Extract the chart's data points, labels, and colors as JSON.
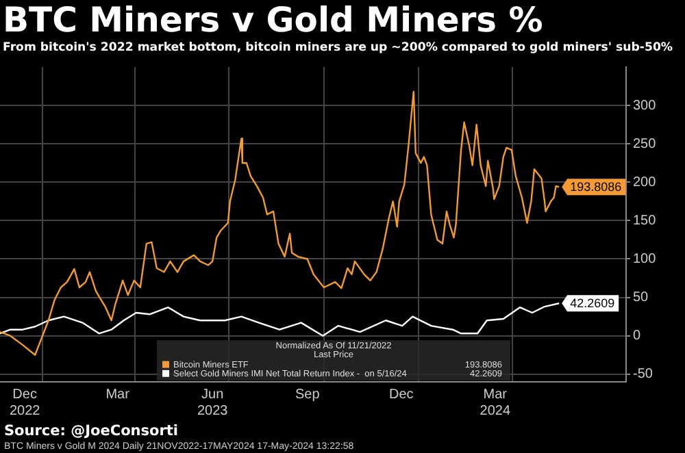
{
  "chart_data": {
    "type": "line",
    "title": "BTC Miners v Gold Miners %",
    "subtitle": "From bitcoin's 2022 market bottom, bitcoin miners are up ~200% compared to gold miners' sub-50%",
    "legend_title": "Normalized As Of 11/21/2022\nLast Price",
    "legend": "bottom",
    "grid": true,
    "marker": "none",
    "line_style": "solid",
    "xlim": [
      "2022-11-21",
      "2024-07-20"
    ],
    "xticks": [
      {
        "value": "2022-12-15",
        "label": "Dec\n2022"
      },
      {
        "value": "2023-01-01",
        "label": null
      },
      {
        "value": "2023-03-15",
        "label": "Mar"
      },
      {
        "value": "2023-04-01",
        "label": null
      },
      {
        "value": "2023-06-15",
        "label": "Jun\n2023"
      },
      {
        "value": "2023-07-01",
        "label": null
      },
      {
        "value": "2023-09-15",
        "label": "Sep"
      },
      {
        "value": "2023-10-01",
        "label": null
      },
      {
        "value": "2023-12-15",
        "label": "Dec"
      },
      {
        "value": "2024-01-01",
        "label": null
      },
      {
        "value": "2024-03-15",
        "label": "Mar\n2024"
      },
      {
        "value": "2024-04-01",
        "label": null
      }
    ],
    "ylim": [
      -60,
      350
    ],
    "yticks": [
      -50,
      0,
      50,
      100,
      150,
      200,
      250,
      300
    ],
    "series": [
      {
        "name": "Bitcoin Miners ETF",
        "color": "#f39a32",
        "x": [
          "2022-11-21",
          "2022-12-01",
          "2022-12-13",
          "2022-12-25",
          "2023-01-07",
          "2023-01-13",
          "2023-01-19",
          "2023-01-25",
          "2023-02-01",
          "2023-02-06",
          "2023-02-12",
          "2023-02-16",
          "2023-02-22",
          "2023-03-03",
          "2023-03-09",
          "2023-03-13",
          "2023-03-20",
          "2023-03-25",
          "2023-03-31",
          "2023-04-06",
          "2023-04-12",
          "2023-04-17",
          "2023-04-22",
          "2023-04-29",
          "2023-05-05",
          "2023-05-12",
          "2023-05-18",
          "2023-05-28",
          "2023-06-03",
          "2023-06-11",
          "2023-06-15",
          "2023-06-19",
          "2023-06-23",
          "2023-06-30",
          "2023-07-02",
          "2023-07-07",
          "2023-07-13",
          "2023-07-14",
          "2023-07-18",
          "2023-07-22",
          "2023-07-28",
          "2023-08-03",
          "2023-08-07",
          "2023-08-13",
          "2023-08-18",
          "2023-08-24",
          "2023-08-29",
          "2023-08-31",
          "2023-09-06",
          "2023-09-15",
          "2023-09-21",
          "2023-10-01",
          "2023-10-12",
          "2023-10-18",
          "2023-10-24",
          "2023-10-28",
          "2023-10-31",
          "2023-11-09",
          "2023-11-15",
          "2023-11-21",
          "2023-11-27",
          "2023-12-03",
          "2023-12-07",
          "2023-12-11",
          "2023-12-13",
          "2023-12-18",
          "2023-12-22",
          "2023-12-27",
          "2023-12-29",
          "2024-01-03",
          "2024-01-06",
          "2024-01-09",
          "2024-01-13",
          "2024-01-19",
          "2024-01-24",
          "2024-01-28",
          "2024-01-31",
          "2024-02-04",
          "2024-02-06",
          "2024-02-11",
          "2024-02-14",
          "2024-02-19",
          "2024-02-22",
          "2024-02-26",
          "2024-03-01",
          "2024-03-06",
          "2024-03-08",
          "2024-03-13",
          "2024-03-14",
          "2024-03-19",
          "2024-03-23",
          "2024-03-26",
          "2024-03-31",
          "2024-04-04",
          "2024-04-10",
          "2024-04-15",
          "2024-04-19",
          "2024-04-22",
          "2024-04-29",
          "2024-05-02",
          "2024-05-03",
          "2024-05-08",
          "2024-05-11",
          "2024-05-13",
          "2024-05-16"
        ],
        "values": [
          5,
          0,
          -12,
          -25,
          20,
          47,
          63,
          70,
          87,
          63,
          70,
          83,
          58,
          38,
          20,
          42,
          72,
          53,
          72,
          63,
          120,
          122,
          88,
          83,
          97,
          83,
          97,
          105,
          97,
          92,
          97,
          128,
          137,
          147,
          175,
          203,
          257,
          225,
          225,
          208,
          195,
          180,
          158,
          162,
          120,
          103,
          133,
          108,
          103,
          100,
          80,
          63,
          70,
          62,
          88,
          80,
          97,
          80,
          72,
          83,
          113,
          153,
          175,
          142,
          175,
          197,
          247,
          318,
          238,
          225,
          233,
          222,
          158,
          125,
          120,
          162,
          145,
          128,
          145,
          242,
          278,
          247,
          222,
          275,
          222,
          195,
          228,
          192,
          178,
          195,
          233,
          245,
          242,
          208,
          180,
          147,
          175,
          217,
          205,
          175,
          162,
          175,
          180,
          195,
          193.8086
        ],
        "value_labels": [
          null,
          null,
          null,
          null,
          null,
          null,
          null,
          null,
          null,
          null,
          null,
          null,
          null,
          null,
          null,
          null,
          null,
          null,
          null,
          null,
          null,
          null,
          null,
          null,
          null,
          null,
          null,
          null,
          null,
          null,
          null,
          null,
          null,
          null,
          null,
          null,
          null,
          null,
          null,
          null,
          null,
          null,
          null,
          null,
          null,
          null,
          null,
          null,
          null,
          null,
          null,
          null,
          null,
          null,
          null,
          null,
          null,
          null,
          null,
          null,
          null,
          null,
          null,
          null,
          null,
          null,
          null,
          null,
          null,
          null,
          null,
          null,
          null,
          null,
          null,
          null,
          null,
          null,
          null,
          null,
          null,
          null,
          null,
          null,
          null,
          null,
          null,
          null,
          null,
          null,
          null,
          null,
          null,
          null,
          null,
          null,
          null,
          null,
          null,
          null,
          null,
          null,
          null,
          null,
          "193.8086"
        ]
      },
      {
        "name": "Select Gold Miners IMI Net Total Return Index -  on 5/16/24",
        "color": "#ffffff",
        "x": [
          "2022-11-21",
          "2022-12-01",
          "2022-12-13",
          "2022-12-25",
          "2023-01-07",
          "2023-01-22",
          "2023-02-09",
          "2023-02-25",
          "2023-03-09",
          "2023-03-21",
          "2023-04-02",
          "2023-04-15",
          "2023-05-03",
          "2023-05-18",
          "2023-06-03",
          "2023-06-27",
          "2023-07-13",
          "2023-07-30",
          "2023-08-19",
          "2023-09-09",
          "2023-09-30",
          "2023-10-15",
          "2023-11-05",
          "2023-11-30",
          "2023-12-16",
          "2023-12-26",
          "2024-01-13",
          "2024-02-03",
          "2024-02-11",
          "2024-02-27",
          "2024-03-07",
          "2024-03-23",
          "2024-04-08",
          "2024-04-20",
          "2024-05-02",
          "2024-05-16"
        ],
        "values": [
          3,
          8,
          8,
          12,
          20,
          25,
          17,
          3,
          8,
          20,
          30,
          28,
          37,
          25,
          20,
          20,
          25,
          17,
          8,
          17,
          0,
          13,
          5,
          20,
          13,
          25,
          13,
          8,
          3,
          3,
          20,
          22,
          37,
          30,
          38,
          42.2609
        ],
        "value_labels": [
          null,
          null,
          null,
          null,
          null,
          null,
          null,
          null,
          null,
          null,
          null,
          null,
          null,
          null,
          null,
          null,
          null,
          null,
          null,
          null,
          null,
          null,
          null,
          null,
          null,
          null,
          null,
          null,
          null,
          null,
          null,
          null,
          null,
          null,
          null,
          "42.2609"
        ]
      }
    ],
    "annotations": [
      "Source: @JoeConsorti",
      "BTC Miners v Gold M 2024  Daily 21NOV2022-17MAY2024     17-May-2024 13:22:58"
    ]
  }
}
